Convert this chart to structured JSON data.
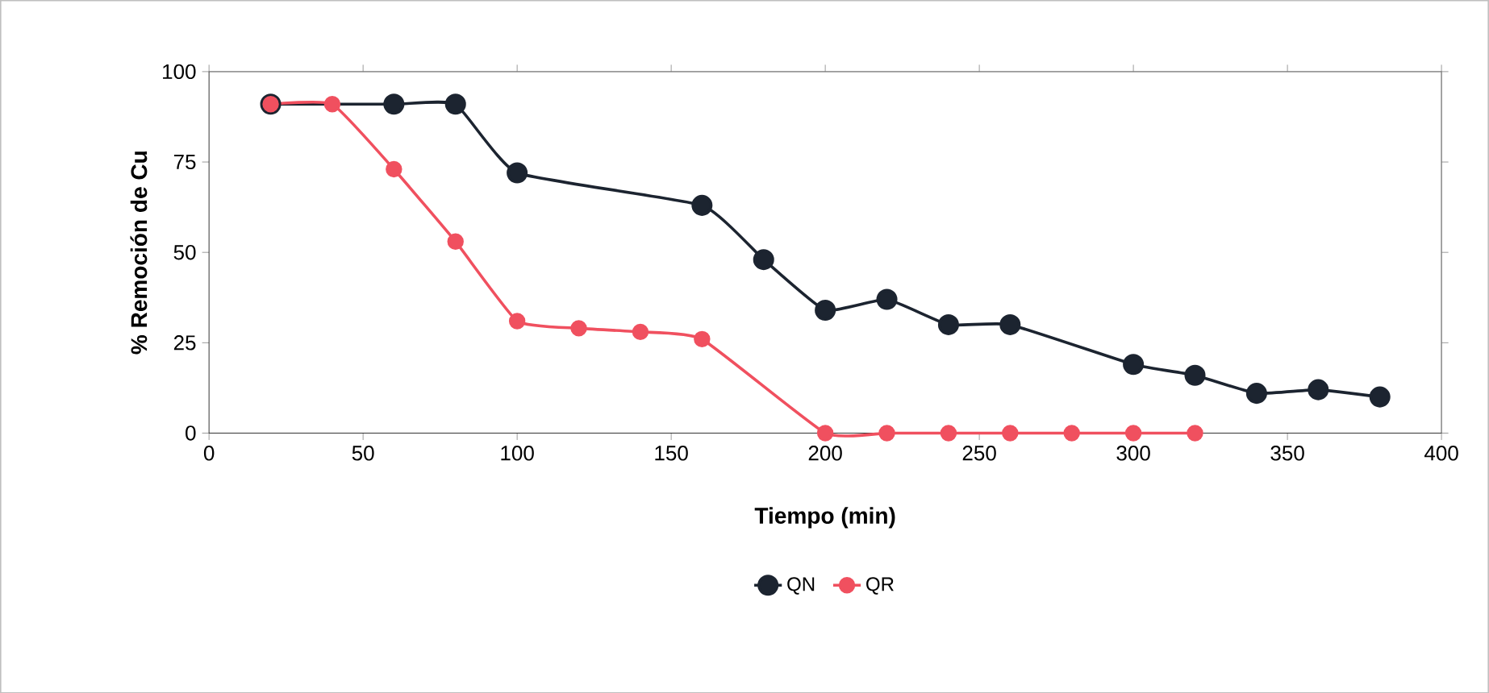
{
  "chart_data": {
    "type": "line",
    "xlabel": "Tiempo (min)",
    "ylabel": "% Remoción de Cu",
    "xlim": [
      0,
      400
    ],
    "xticks": [
      0,
      50,
      100,
      150,
      200,
      250,
      300,
      350,
      400
    ],
    "ylim": [
      0,
      100
    ],
    "yticks": [
      0,
      25,
      50,
      75,
      100
    ],
    "grid": false,
    "legend": "bottom",
    "marker": "circle",
    "line_style": "solid",
    "series": [
      {
        "name": "QN",
        "color": "#1c2430",
        "x": [
          20,
          60,
          80,
          100,
          160,
          180,
          200,
          220,
          240,
          260,
          300,
          320,
          340,
          360,
          380
        ],
        "values": [
          91,
          91,
          91,
          72,
          63,
          48,
          34,
          37,
          30,
          30,
          19,
          16,
          11,
          12,
          10
        ]
      },
      {
        "name": "QR",
        "color": "#f0505f",
        "x": [
          20,
          40,
          60,
          80,
          100,
          120,
          140,
          160,
          200,
          220,
          240,
          260,
          280,
          300,
          320
        ],
        "values": [
          91,
          91,
          73,
          53,
          31,
          29,
          28,
          26,
          0,
          0,
          0,
          0,
          0,
          0,
          0
        ]
      }
    ]
  }
}
